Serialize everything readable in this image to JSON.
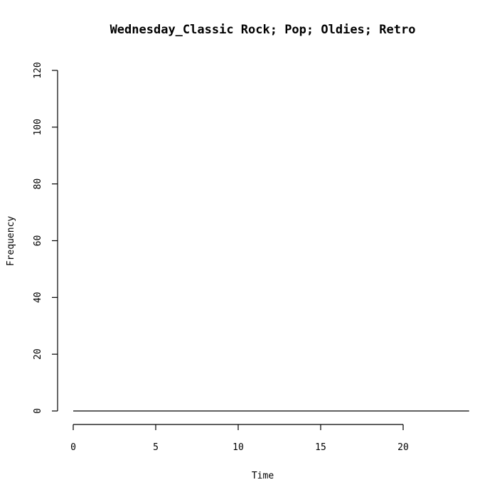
{
  "chart_data": {
    "type": "line",
    "title": "Wednesday_Classic Rock; Pop; Oldies; Retro",
    "xlabel": "Time",
    "ylabel": "Frequency",
    "xlim": [
      0,
      24
    ],
    "ylim": [
      0,
      120
    ],
    "x_ticks": [
      0,
      5,
      10,
      15,
      20
    ],
    "x_tick_labels": [
      "0",
      "5",
      "10",
      "15",
      "20"
    ],
    "y_ticks": [
      0,
      20,
      40,
      60,
      80,
      100,
      120
    ],
    "y_tick_labels": [
      "0",
      "20",
      "40",
      "60",
      "80",
      "100",
      "120"
    ],
    "grid": false,
    "series": [
      {
        "x": [
          0,
          1,
          2,
          3,
          4,
          5,
          6,
          7,
          8,
          9,
          10,
          11,
          12,
          13,
          14,
          15,
          16,
          17,
          18,
          19,
          20,
          21,
          22,
          23,
          24
        ],
        "values": [
          0,
          0,
          0,
          0,
          0,
          0,
          0,
          0,
          0,
          0,
          0,
          0,
          0,
          0,
          0,
          0,
          0,
          0,
          0,
          0,
          0,
          0,
          0,
          0,
          0
        ]
      }
    ],
    "colors": {
      "axis": "#000000",
      "series": "#000000",
      "background": "#ffffff"
    }
  }
}
